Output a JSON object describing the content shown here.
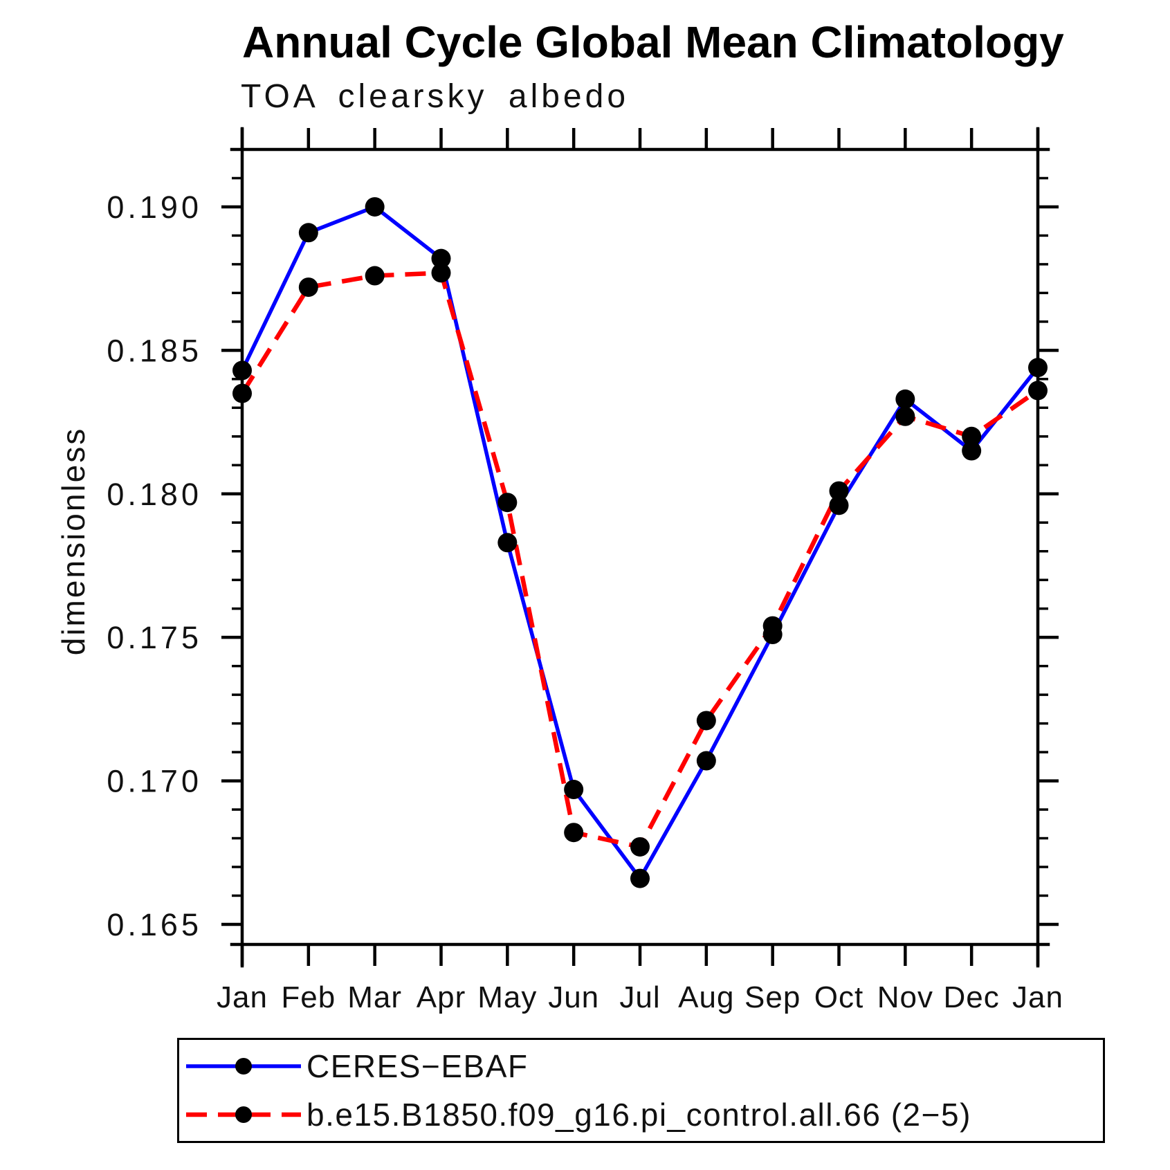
{
  "page": {
    "background": "#ffffff"
  },
  "chart_data": {
    "type": "line",
    "title": "Annual Cycle Global Mean Climatology",
    "subtitle": "TOA clearsky albedo",
    "ylabel": "dimensionless",
    "xlabel": "",
    "categories": [
      "Jan",
      "Feb",
      "Mar",
      "Apr",
      "May",
      "Jun",
      "Jul",
      "Aug",
      "Sep",
      "Oct",
      "Nov",
      "Dec",
      "Jan"
    ],
    "yticks": [
      "0.190",
      "0.185",
      "0.180",
      "0.175",
      "0.170",
      "0.165"
    ],
    "ylim": [
      0.1643,
      0.192
    ],
    "y_minor_step": 0.001,
    "grid": false,
    "legend_position": "bottom",
    "axis_color": "#000000",
    "marker_color": "#000000",
    "series": [
      {
        "name": "CERES−EBAF",
        "color": "#0000ff",
        "style": "solid",
        "marker": "filled-circle",
        "values": [
          0.1843,
          0.1891,
          0.19,
          0.1882,
          0.1783,
          0.1697,
          0.1666,
          0.1707,
          0.1751,
          0.1796,
          0.1833,
          0.1815,
          0.1844
        ]
      },
      {
        "name": "b.e15.B1850.f09_g16.pi_control.all.66 (2−5)",
        "color": "#ff0000",
        "style": "dashed",
        "marker": "filled-circle",
        "values": [
          0.1835,
          0.1872,
          0.1876,
          0.1877,
          0.1797,
          0.1682,
          0.1677,
          0.1721,
          0.1754,
          0.1801,
          0.1827,
          0.182,
          0.1836
        ]
      }
    ]
  }
}
